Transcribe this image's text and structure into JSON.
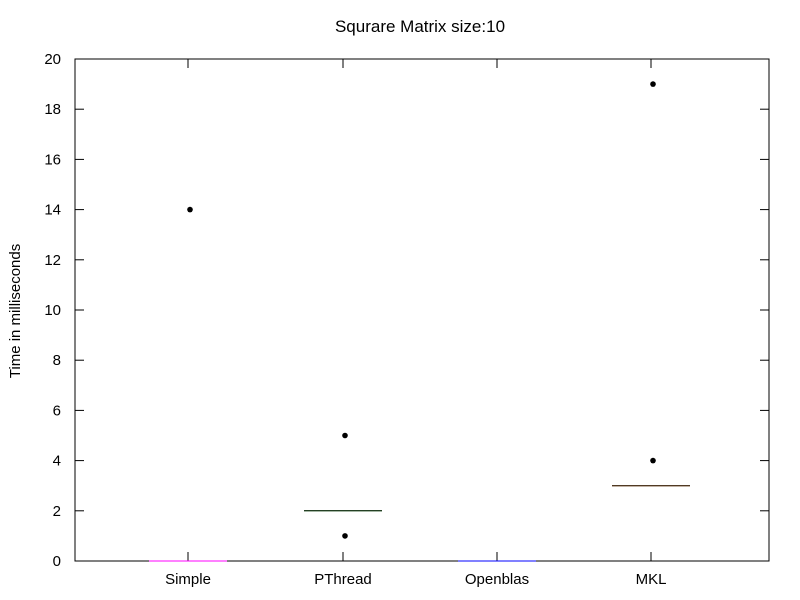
{
  "chart_data": {
    "type": "box",
    "title": "Squrare Matrix size:10",
    "xlabel": "",
    "ylabel": "Time in milliseconds",
    "ylim": [
      0,
      20
    ],
    "yticks": [
      0,
      2,
      4,
      6,
      8,
      10,
      12,
      14,
      16,
      18,
      20
    ],
    "categories": [
      "Simple",
      "PThread",
      "Openblas",
      "MKL"
    ],
    "grid": false,
    "boxes": [
      {
        "category": "Simple",
        "median": 0,
        "outliers": [
          14
        ],
        "color": "#ff00ff"
      },
      {
        "category": "PThread",
        "median": 2,
        "outliers": [
          5,
          1
        ],
        "color": "#008000"
      },
      {
        "category": "Openblas",
        "median": 0,
        "outliers": [],
        "color": "#0000ff"
      },
      {
        "category": "MKL",
        "median": 3,
        "outliers": [
          19,
          4
        ],
        "color": "#cc6600"
      }
    ]
  }
}
